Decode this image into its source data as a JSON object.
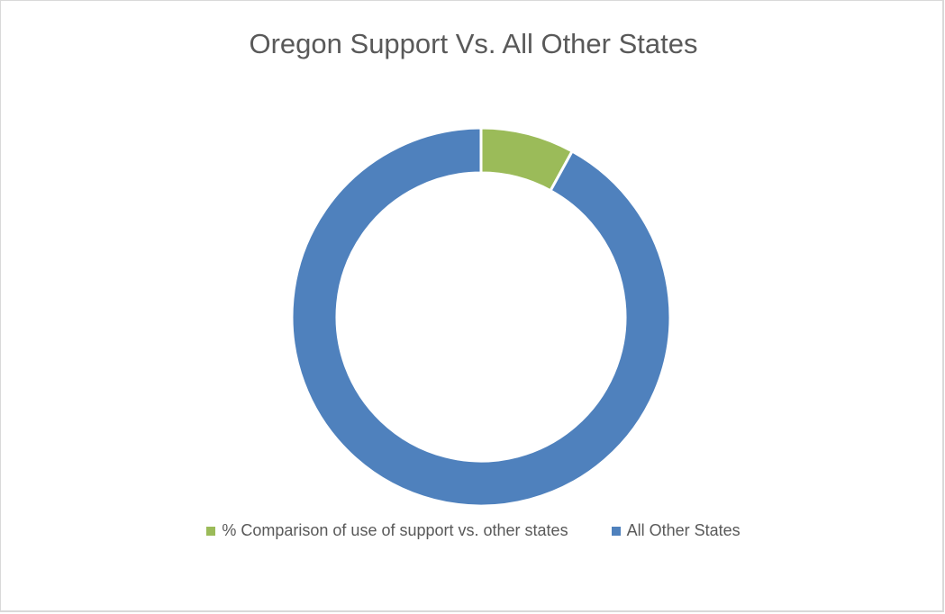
{
  "chart_data": {
    "type": "pie",
    "title": "Oregon Support Vs. All Other States",
    "categories": [
      "% Comparison of use of support vs. other states",
      "All Other States"
    ],
    "values": [
      8,
      92
    ],
    "colors": [
      "#9bbb59",
      "#4f81bd"
    ],
    "legend": "bottom",
    "hole": "donut"
  }
}
